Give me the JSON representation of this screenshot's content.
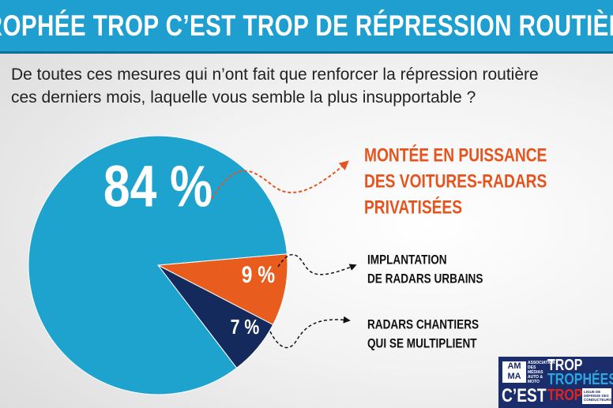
{
  "header": {
    "title": "TROPHÉE TROP C’EST TROP DE RÉPRESSION ROUTIÈRE"
  },
  "question": {
    "line1": "De toutes ces mesures qui n’ont fait que renforcer la répression routière",
    "line2": "ces derniers mois, laquelle vous semble la plus insupportable ?"
  },
  "chart_data": {
    "type": "pie",
    "title": "",
    "slices": [
      {
        "value": 84,
        "value_label": "84 %",
        "label_lines": [
          "MONTÉE EN PUISSANCE",
          "DES VOITURES-RADARS",
          "PRIVATISÉES"
        ],
        "color": "#1ea3cf",
        "label_color": "#e5541f"
      },
      {
        "value": 9,
        "value_label": "9 %",
        "label_lines": [
          "IMPLANTATION",
          "DE RADARS URBAINS"
        ],
        "color": "#e85c1e",
        "label_color": "#111111"
      },
      {
        "value": 7,
        "value_label": "7 %",
        "label_lines": [
          "RADARS CHANTIERS",
          "QUI SE MULTIPLIENT"
        ],
        "color": "#142a5c",
        "label_color": "#111111"
      }
    ],
    "legend": "callouts-right"
  },
  "logo": {
    "ama": "AM MA",
    "association": "ASSOCIATION DES MÉDIAS AUTO & MOTO",
    "trop_top": "TROP",
    "trophees": "TROPHÉES",
    "cest": "C’EST",
    "trop_bottom": "TROP",
    "ligue": "LIGUE DE DÉFENSE DES CONDUCTEURS"
  },
  "colors": {
    "banner": "#1e9fd0",
    "accent_orange": "#e5541f",
    "navy": "#142a5c"
  }
}
